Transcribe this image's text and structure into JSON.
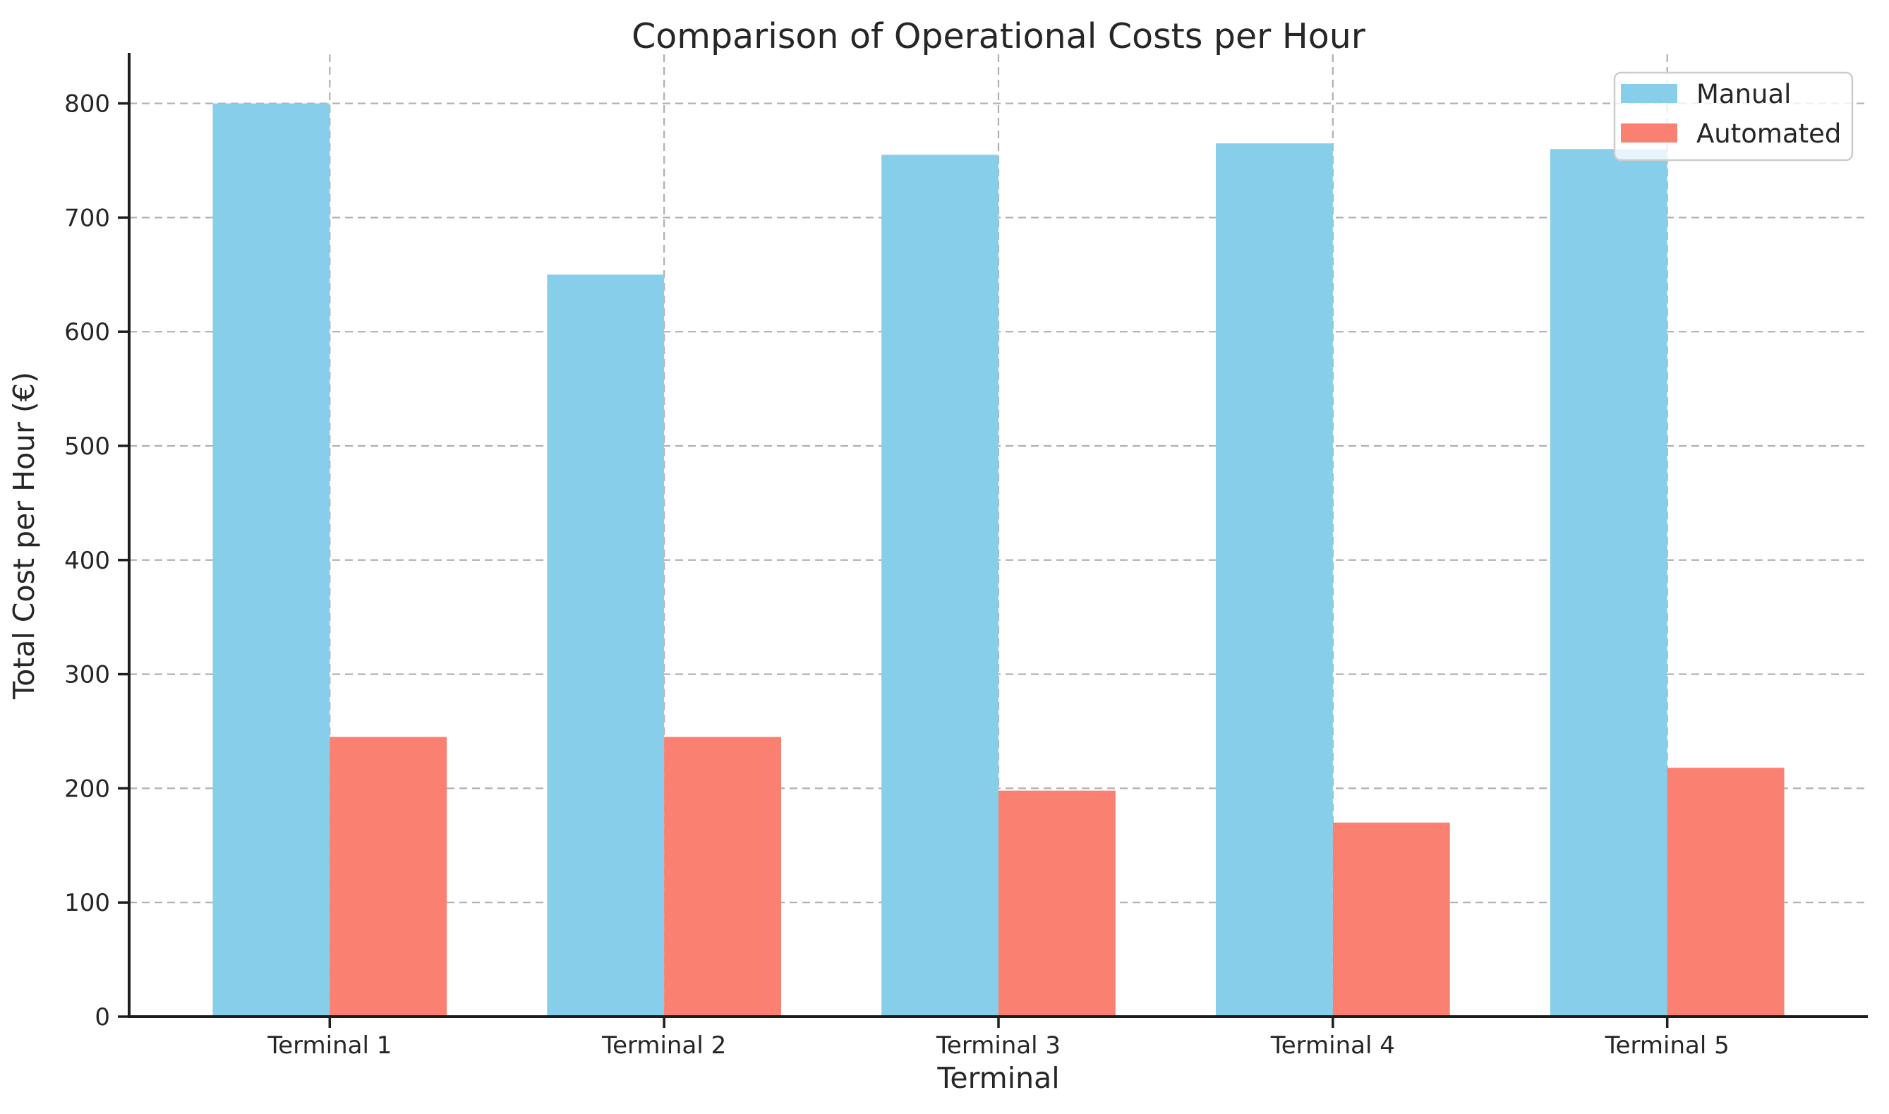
{
  "chart_data": {
    "type": "bar",
    "title": "Comparison of Operational Costs per Hour",
    "xlabel": "Terminal",
    "ylabel": "Total Cost per Hour (€)",
    "categories": [
      "Terminal 1",
      "Terminal 2",
      "Terminal 3",
      "Terminal 4",
      "Terminal 5"
    ],
    "series": [
      {
        "name": "Manual",
        "color": "#87CEEB",
        "values": [
          800,
          650,
          755,
          765,
          760
        ]
      },
      {
        "name": "Automated",
        "color": "#FA8072",
        "values": [
          245,
          245,
          198,
          170,
          218
        ]
      }
    ],
    "bar_width": 0.35,
    "yticks": [
      0,
      100,
      200,
      300,
      400,
      500,
      600,
      700,
      800
    ],
    "ylim": [
      0,
      843
    ],
    "xlim": [
      -0.6,
      4.6
    ],
    "grid": {
      "visible": true,
      "style": "dashed",
      "color": "#b0b0b0"
    },
    "legend": {
      "position": "upper right",
      "entries": [
        "Manual",
        "Automated"
      ]
    },
    "colors": {
      "background": "#ffffff",
      "text": "#262626",
      "spine": "#1d1d1d",
      "legend_border": "#cccccc"
    }
  }
}
